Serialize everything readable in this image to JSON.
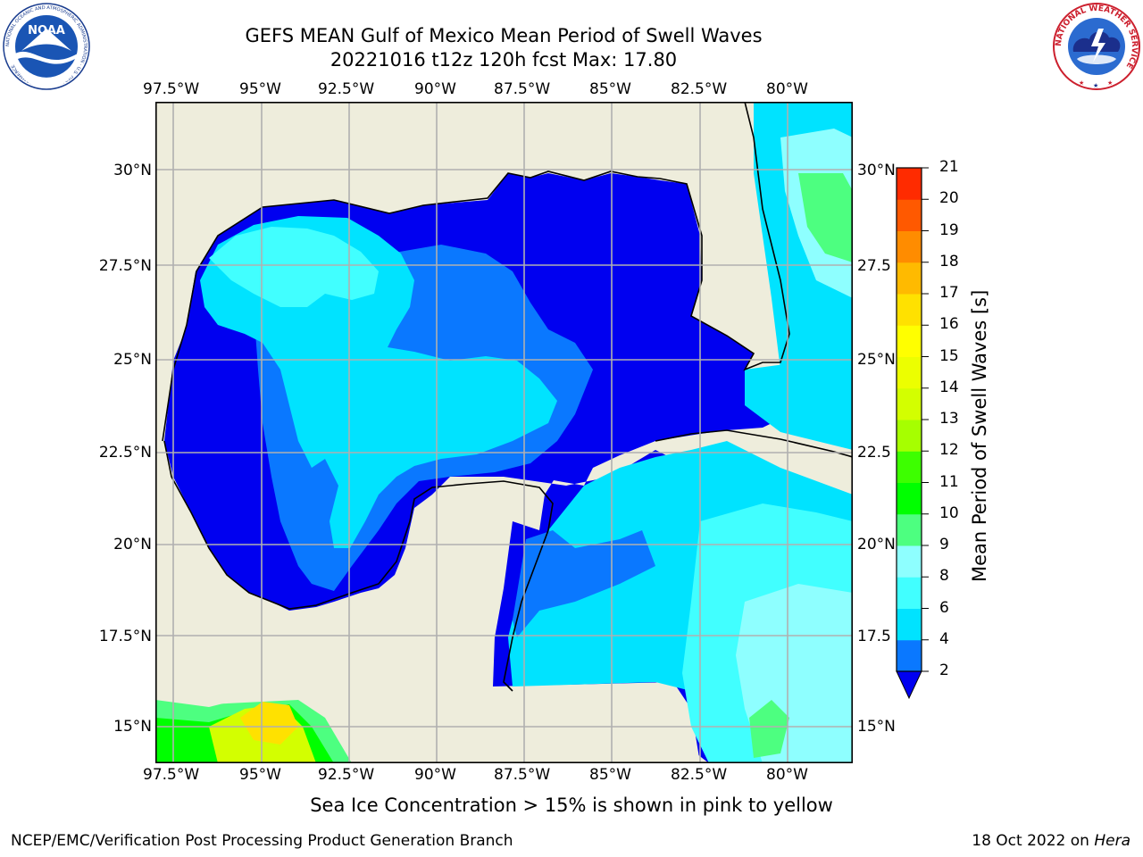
{
  "title_line1": "GEFS MEAN Gulf of Mexico Mean Period of Swell Waves",
  "title_line2": "20221016 t12z 120h fcst   Max: 17.80",
  "lon_ticks": [
    "97.5°W",
    "95°W",
    "92.5°W",
    "90°W",
    "87.5°W",
    "85°W",
    "82.5°W",
    "80°W"
  ],
  "lat_ticks_left": [
    "30°N",
    "27.5°N",
    "25°N",
    "22.5°N",
    "20°N",
    "17.5°N",
    "15°N"
  ],
  "lat_ticks_right": [
    "30°N",
    "27.5",
    "25°N",
    "22.5",
    "20°N",
    "17.5",
    "15°N"
  ],
  "colorbar": {
    "title": "Mean Period of Swell Waves [s]",
    "levels": [
      "2",
      "4",
      "6",
      "8",
      "9",
      "10",
      "11",
      "12",
      "13",
      "14",
      "15",
      "16",
      "17",
      "18",
      "19",
      "20",
      "21"
    ],
    "colors": [
      "#0a78ff",
      "#00e3ff",
      "#41ffff",
      "#8effff",
      "#4dff80",
      "#00ff00",
      "#3dff00",
      "#a6ff00",
      "#d3ff00",
      "#ecff00",
      "#ffff00",
      "#ffe100",
      "#ffba00",
      "#ff8c00",
      "#ff5900",
      "#ff2b00",
      "#ff0000"
    ],
    "underflow_color": "#0000f0"
  },
  "caption": "Sea Ice Concentration > 15% is shown in pink to yellow",
  "footer_left": "NCEP/EMC/Verification Post Processing Product Generation Branch",
  "footer_right_prefix": "18 Oct 2022 on ",
  "footer_right_host": "Hera",
  "logos": {
    "noaa_text": "NOAA",
    "noaa_ring_text": "NATIONAL OCEANIC AND ATMOSPHERIC ADMINISTRATION · U.S. DEPARTMENT OF COMMERCE",
    "nws_ring_text": "NATIONAL WEATHER SERVICE"
  }
}
